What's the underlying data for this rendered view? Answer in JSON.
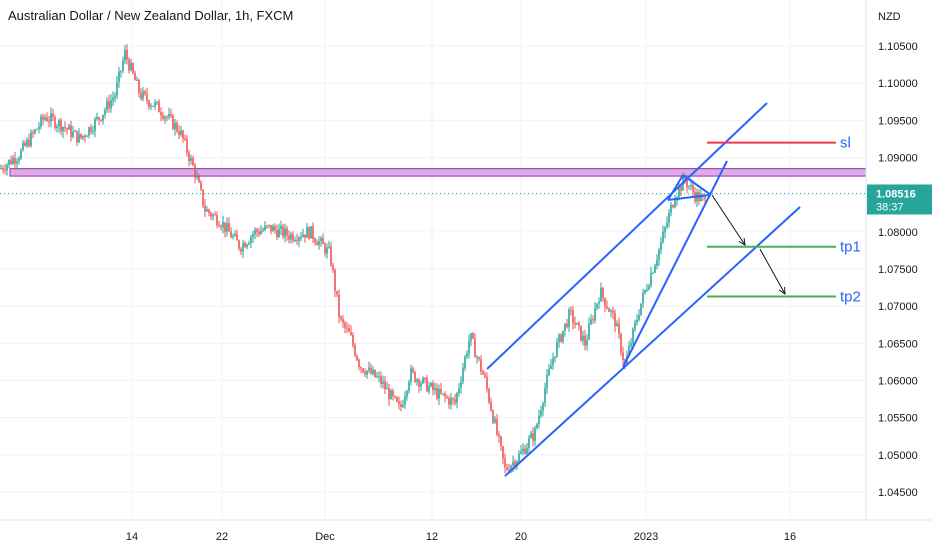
{
  "chart_data": {
    "type": "candlestick",
    "title": "Australian Dollar / New Zealand Dollar, 1h, FXCM",
    "currency_label": "NZD",
    "price_ticks": [
      "1.10500",
      "1.10000",
      "1.09500",
      "1.09000",
      "1.08500",
      "1.08000",
      "1.07500",
      "1.07000",
      "1.06500",
      "1.06000",
      "1.05500",
      "1.05000",
      "1.04500"
    ],
    "time_ticks": [
      "14",
      "22",
      "Dec",
      "12",
      "20",
      "2023",
      "16"
    ],
    "ylim": [
      1.0425,
      1.1085
    ],
    "current_price": "1.08516",
    "countdown": "38:37",
    "grid": true,
    "colors": {
      "up": "#26a69a",
      "down": "#ef5350",
      "channel": "#2962ff",
      "zone": "#ce93d8",
      "sl": "#f23645",
      "tp": "#4caf50",
      "price_line": "#26a69a"
    },
    "price_path": [
      [
        0,
        1.0885
      ],
      [
        20,
        1.0905
      ],
      [
        35,
        1.0935
      ],
      [
        45,
        1.0955
      ],
      [
        60,
        1.0945
      ],
      [
        80,
        1.0925
      ],
      [
        100,
        1.0955
      ],
      [
        115,
        1.0985
      ],
      [
        125,
        1.104
      ],
      [
        140,
        1.0985
      ],
      [
        160,
        1.0965
      ],
      [
        180,
        1.0935
      ],
      [
        195,
        1.088
      ],
      [
        205,
        1.083
      ],
      [
        220,
        1.0815
      ],
      [
        240,
        1.078
      ],
      [
        255,
        1.08
      ],
      [
        270,
        1.0805
      ],
      [
        290,
        1.0795
      ],
      [
        310,
        1.08
      ],
      [
        330,
        1.077
      ],
      [
        340,
        1.068
      ],
      [
        350,
        1.066
      ],
      [
        360,
        1.062
      ],
      [
        380,
        1.06
      ],
      [
        400,
        1.056
      ],
      [
        410,
        1.061
      ],
      [
        420,
        1.06
      ],
      [
        440,
        1.058
      ],
      [
        455,
        1.057
      ],
      [
        470,
        1.066
      ],
      [
        485,
        1.06
      ],
      [
        495,
        1.054
      ],
      [
        505,
        1.048
      ],
      [
        520,
        1.05
      ],
      [
        535,
        1.053
      ],
      [
        545,
        1.059
      ],
      [
        555,
        1.064
      ],
      [
        570,
        1.069
      ],
      [
        585,
        1.065
      ],
      [
        600,
        1.072
      ],
      [
        615,
        1.068
      ],
      [
        625,
        1.062
      ],
      [
        640,
        1.07
      ],
      [
        660,
        1.078
      ],
      [
        675,
        1.085
      ],
      [
        685,
        1.087
      ],
      [
        695,
        1.085
      ],
      [
        705,
        1.084
      ]
    ],
    "annotations": [
      {
        "label": "sl",
        "price": 1.092
      },
      {
        "label": "tp1",
        "price": 1.078
      },
      {
        "label": "tp2",
        "price": 1.0713
      }
    ],
    "resistance_zone": [
      1.0875,
      1.0885
    ]
  }
}
